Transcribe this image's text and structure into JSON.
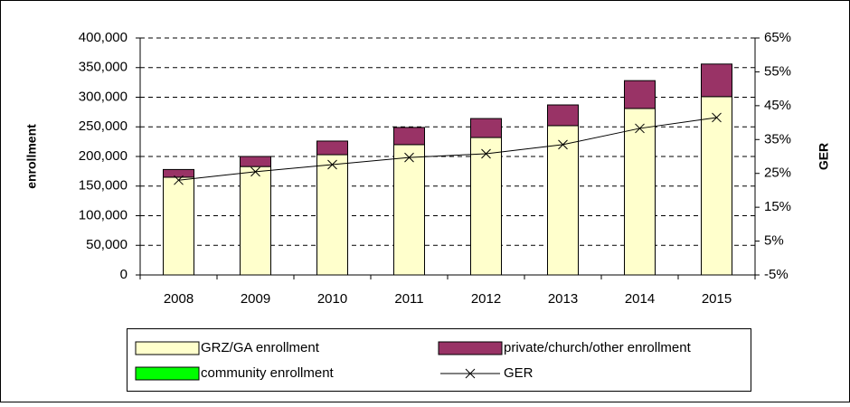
{
  "chart_data": {
    "type": "bar",
    "categories": [
      "2008",
      "2009",
      "2010",
      "2011",
      "2012",
      "2013",
      "2014",
      "2015"
    ],
    "series": [
      {
        "name": "GRZ/GA enrollment",
        "type": "bar",
        "color": "#ffffcc",
        "values": [
          165000,
          183000,
          203000,
          220000,
          232000,
          252000,
          281000,
          301000
        ]
      },
      {
        "name": "private/church/other enrollment",
        "type": "bar",
        "color": "#993366",
        "values": [
          13000,
          17000,
          23000,
          29000,
          32000,
          35000,
          47000,
          55000
        ]
      },
      {
        "name": "community enrollment",
        "type": "bar",
        "color": "#00ff00",
        "values": [
          0,
          0,
          0,
          0,
          0,
          0,
          0,
          0
        ]
      },
      {
        "name": "GER",
        "type": "line",
        "axis": "y2",
        "color": "#000000",
        "marker": "x",
        "values": [
          23.0,
          25.5,
          27.6,
          29.7,
          30.8,
          33.5,
          38.3,
          41.5
        ]
      }
    ],
    "ylabel": "enrollment",
    "y2label": "GER",
    "ylim": [
      0,
      400000
    ],
    "yticks": [
      0,
      {
        "value": 50000,
        "label": "50,000"
      },
      {
        "value": 100000,
        "label": "100,000"
      },
      {
        "value": 150000,
        "label": "150,000"
      },
      {
        "value": 200000,
        "label": "200,000"
      },
      {
        "value": 250000,
        "label": "250,000"
      },
      {
        "value": 300000,
        "label": "300,000"
      },
      {
        "value": 350000,
        "label": "350,000"
      },
      {
        "value": 400000,
        "label": "400,000"
      }
    ],
    "y2lim": [
      -5,
      65
    ],
    "y2ticks": [
      {
        "value": -5,
        "label": "-5%"
      },
      {
        "value": 5,
        "label": "5%"
      },
      {
        "value": 15,
        "label": "15%"
      },
      {
        "value": 25,
        "label": "25%"
      },
      {
        "value": 35,
        "label": "35%"
      },
      {
        "value": 45,
        "label": "45%"
      },
      {
        "value": 55,
        "label": "55%"
      },
      {
        "value": 65,
        "label": "65%"
      }
    ],
    "grid": true,
    "legend": "bottom",
    "stacked": true
  }
}
